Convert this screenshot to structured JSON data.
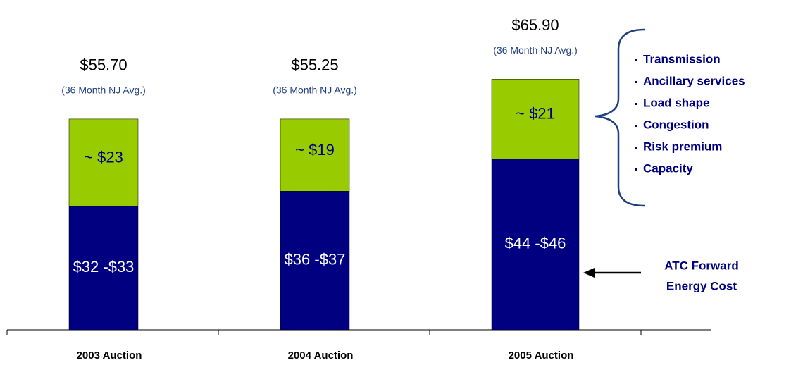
{
  "chart_data": {
    "type": "bar",
    "stacked": true,
    "categories": [
      "2003 Auction",
      "2004 Auction",
      "2005 Auction"
    ],
    "series": [
      {
        "color": "#000080",
        "values": [
          32.5,
          36.5,
          45
        ],
        "value_labels": [
          "$32 -$33",
          "$36 -$37",
          "$44 -$46"
        ]
      },
      {
        "color": "#99cc00",
        "values": [
          23,
          19,
          21
        ],
        "value_labels": [
          "~ $23",
          "~ $19",
          "~ $21"
        ]
      }
    ],
    "totals": [
      55.7,
      55.25,
      65.9
    ],
    "total_labels": [
      "$55.70",
      "$55.25",
      "$65.90"
    ],
    "total_notes": [
      "(36 Month NJ Avg.)",
      "(36 Month NJ Avg.)",
      "(36 Month NJ Avg.)"
    ],
    "bullets": [
      "Transmission",
      "Ancillary services",
      "Load shape",
      "Congestion",
      "Risk premium",
      "Capacity"
    ],
    "arrow_label": [
      "ATC Forward",
      "Energy Cost"
    ],
    "ylim": [
      0,
      72
    ]
  }
}
